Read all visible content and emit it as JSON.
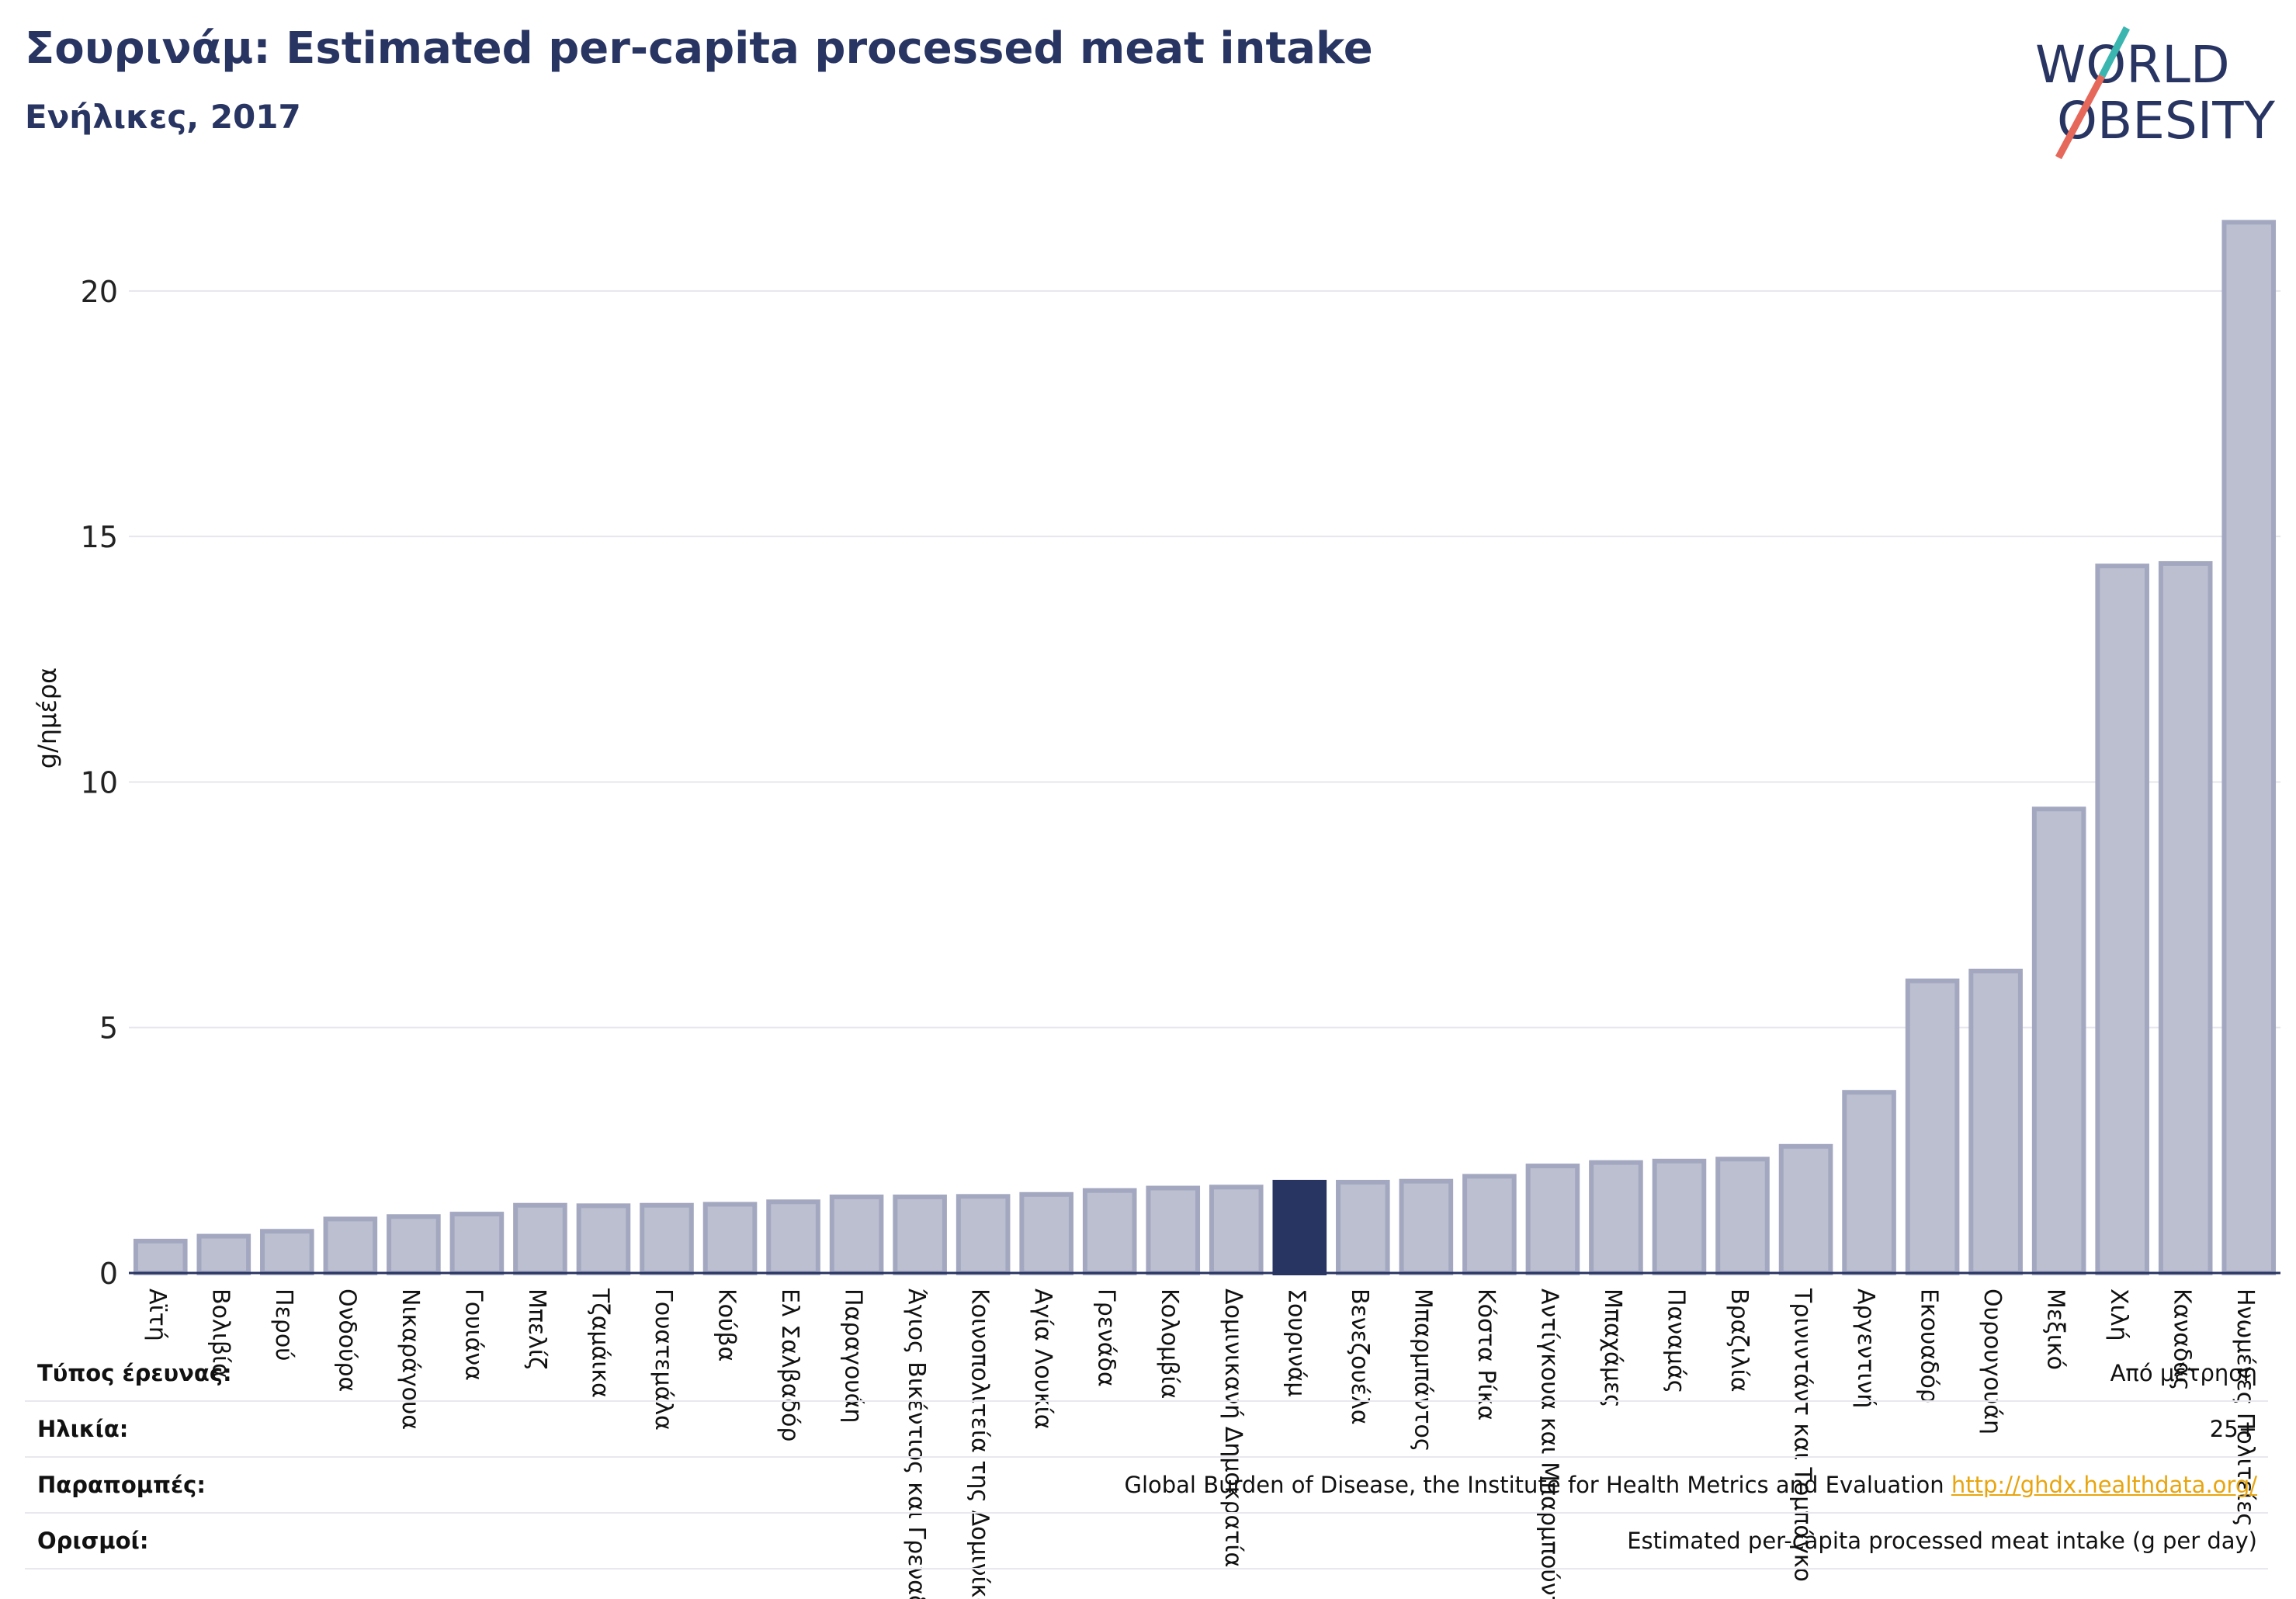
{
  "header": {
    "title": "Σουρινάμ: Estimated per-capita processed meat intake",
    "subtitle": "Ενήλικες, 2017"
  },
  "logo": {
    "line1": "WORLD",
    "line2": "OBESITY",
    "colors": {
      "text": "#283462",
      "slash_top": "#3bb5b0",
      "slash_bottom": "#e5685a"
    }
  },
  "colors": {
    "bar_fill": "#bcbfcf",
    "bar_stroke": "#a3a8c0",
    "highlight": "#283462",
    "grid": "#e6e6ec",
    "axis": "#283462"
  },
  "chart_data": {
    "type": "bar",
    "ylabel": "g/ημέρα",
    "ylim": [
      0,
      21.5
    ],
    "yticks": [
      0,
      5,
      10,
      15,
      20
    ],
    "grid": true,
    "highlight": "Σουρινάμ",
    "categories": [
      "Αϊτή",
      "Βολιβία",
      "Περού",
      "Ονδούρα",
      "Νικαράγουα",
      "Γουιάνα",
      "Μπελίζ",
      "Τζαμάικα",
      "Γουατεμάλα",
      "Κούβα",
      "Ελ Σαλβαδόρ",
      "Παραγουάη",
      "Άγιος Βικέντιος και Γρεναδίνες",
      "Κοινοπολιτεία της Δομινίκας",
      "Αγία Λουκία",
      "Γρενάδα",
      "Κολομβία",
      "Δομινικανή Δημοκρατία",
      "Σουρινάμ",
      "Βενεζουέλα",
      "Μπαρμπάντος",
      "Κόστα Ρίκα",
      "Αντίγκουα και Μπαρμπούντα",
      "Μπαχάμες",
      "Παναμάς",
      "Βραζιλία",
      "Τρινιντάντ και Τομπάγκο",
      "Αργεντινή",
      "Εκουαδόρ",
      "Ουρουγουάη",
      "Μεξικό",
      "Χιλή",
      "Καναδάς",
      "Ηνωμένες Πολιτείες"
    ],
    "values": [
      0.65,
      0.75,
      0.85,
      1.1,
      1.15,
      1.2,
      1.38,
      1.37,
      1.38,
      1.4,
      1.45,
      1.55,
      1.55,
      1.56,
      1.6,
      1.68,
      1.73,
      1.75,
      1.85,
      1.85,
      1.87,
      1.97,
      2.18,
      2.25,
      2.28,
      2.32,
      2.58,
      3.68,
      5.95,
      6.15,
      9.45,
      14.4,
      14.45,
      21.4
    ]
  },
  "info_table": {
    "survey_type": {
      "label": "Τύπος έρευνας:",
      "value": "Από μέτρηση"
    },
    "age": {
      "label": "Ηλικία:",
      "value": "25+"
    },
    "references": {
      "label": "Παραπομπές:",
      "value": "Global Burden of Disease, the Institute for Health Metrics and Evaluation",
      "link": "http://ghdx.healthdata.org/"
    },
    "definitions": {
      "label": "Ορισμοί:",
      "value": "Estimated per-capita processed meat intake (g per day)"
    }
  }
}
